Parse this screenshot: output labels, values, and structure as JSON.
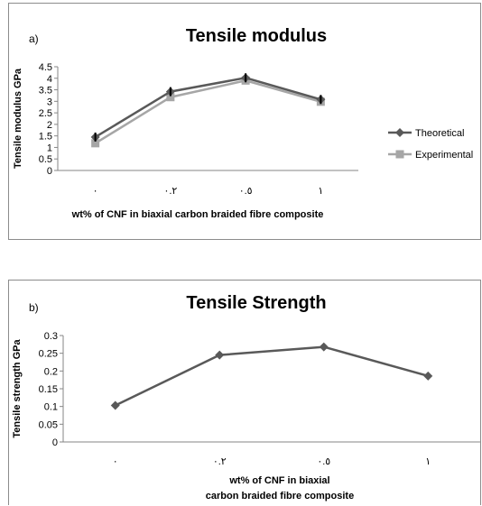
{
  "chart_data": [
    {
      "type": "line",
      "panel_label": "a)",
      "title": "Tensile modulus",
      "xlabel": "wt% of CNF in biaxial carbon braided fibre composite",
      "ylabel": "Tensile modulus GPa",
      "categories": [
        "٠",
        "٠.٢",
        "٠.٥",
        "١"
      ],
      "ylim": [
        0,
        4.5
      ],
      "yticks": [
        "0",
        "0.5",
        "1",
        "1.5",
        "2",
        "2.5",
        "3",
        "3.5",
        "4",
        "4.5"
      ],
      "legend_position": "right",
      "series": [
        {
          "name": "Theoretical",
          "values": [
            1.45,
            3.42,
            4.02,
            3.08
          ],
          "color": "#595959",
          "marker": "diamond"
        },
        {
          "name": "Experimental",
          "values": [
            1.18,
            3.18,
            3.9,
            2.98
          ],
          "color": "#a6a6a6",
          "marker": "square"
        }
      ],
      "error_bars": true,
      "grid": false
    },
    {
      "type": "line",
      "panel_label": "b)",
      "title": "Tensile Strength",
      "xlabel": "wt% of CNF in biaxial carbon braided fibre composite",
      "xlabel_lines": [
        "wt% of CNF in biaxial",
        "carbon braided fibre composite"
      ],
      "ylabel": "Tensile strength GPa",
      "categories": [
        "٠",
        "٠.٢",
        "٠.٥",
        "١"
      ],
      "ylim": [
        0,
        0.3
      ],
      "yticks": [
        "0",
        "0.05",
        "0.1",
        "0.15",
        "0.2",
        "0.25",
        "0.3"
      ],
      "series": [
        {
          "values": [
            0.103,
            0.245,
            0.268,
            0.186
          ],
          "color": "#595959",
          "marker": "diamond"
        }
      ],
      "grid": false
    }
  ]
}
